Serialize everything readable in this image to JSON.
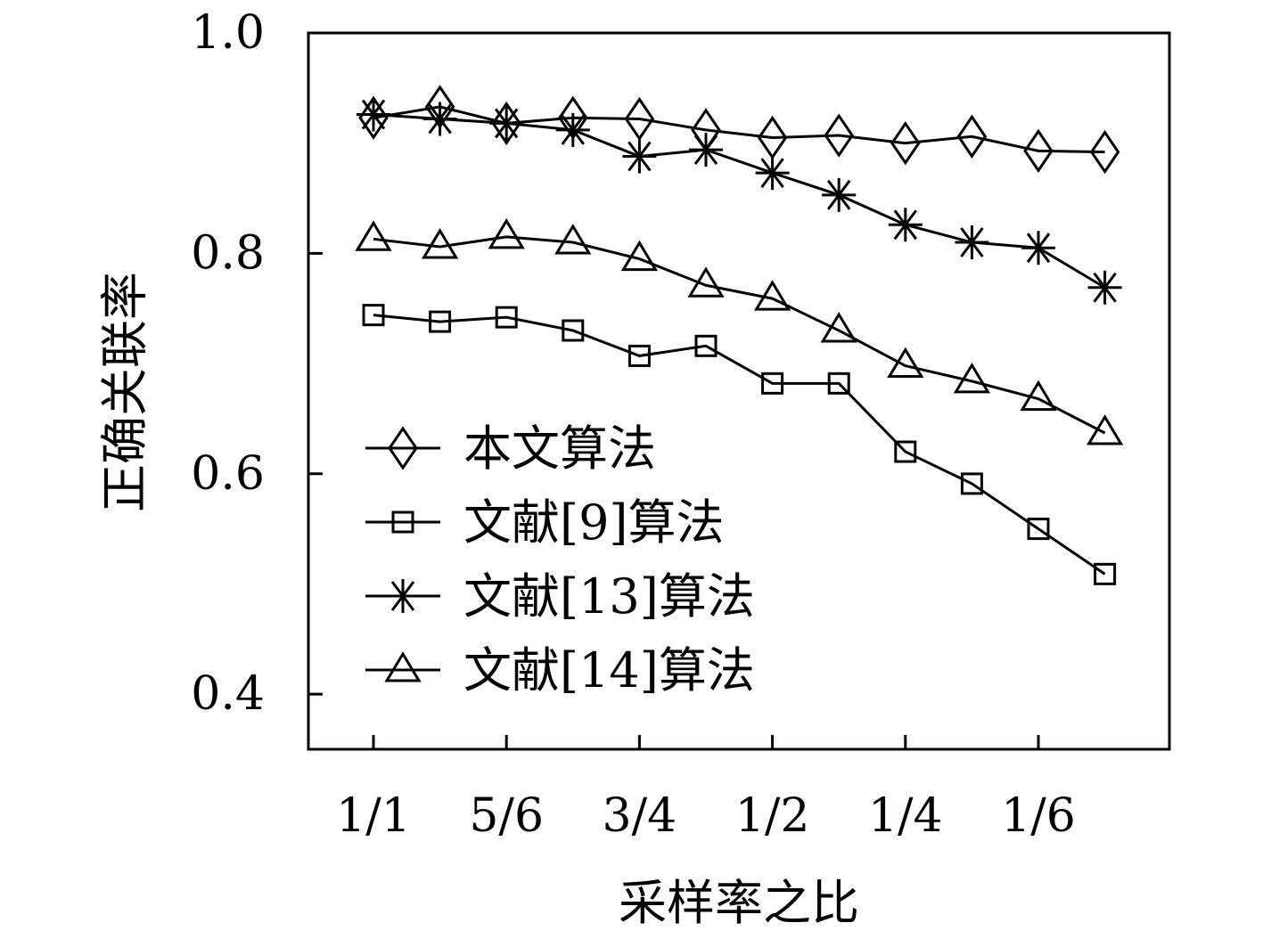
{
  "chart_data": {
    "type": "line",
    "xlabel": "采样率之比",
    "ylabel": "正确关联率",
    "ylim": [
      0.35,
      1.0
    ],
    "y_ticks": [
      {
        "value": 0.4,
        "label": "0.4"
      },
      {
        "value": 0.6,
        "label": "0.6"
      },
      {
        "value": 0.8,
        "label": "0.8"
      },
      {
        "value": 1.0,
        "label": "1.0"
      }
    ],
    "x_positions": [
      1,
      2,
      3,
      4,
      5,
      6,
      7,
      8,
      9,
      10,
      11,
      12
    ],
    "x_ticks": [
      {
        "position": 1,
        "label": "1/1"
      },
      {
        "position": 3,
        "label": "5/6"
      },
      {
        "position": 5,
        "label": "3/4"
      },
      {
        "position": 7,
        "label": "1/2"
      },
      {
        "position": 9,
        "label": "1/4"
      },
      {
        "position": 11,
        "label": "1/6"
      }
    ],
    "legend_position": "lower-left",
    "grid": false,
    "series": [
      {
        "name": "本文算法",
        "marker": "diamond",
        "values": [
          0.923,
          0.933,
          0.918,
          0.923,
          0.922,
          0.912,
          0.905,
          0.907,
          0.9,
          0.906,
          0.893,
          0.892
        ]
      },
      {
        "name": "文献[9]算法",
        "marker": "square",
        "values": [
          0.744,
          0.738,
          0.742,
          0.73,
          0.707,
          0.716,
          0.682,
          0.682,
          0.62,
          0.591,
          0.55,
          0.509
        ]
      },
      {
        "name": "文献[13]算法",
        "marker": "asterisk",
        "values": [
          0.926,
          0.922,
          0.918,
          0.912,
          0.888,
          0.894,
          0.873,
          0.853,
          0.826,
          0.81,
          0.805,
          0.769
        ]
      },
      {
        "name": "文献[14]算法",
        "marker": "triangle",
        "values": [
          0.813,
          0.806,
          0.815,
          0.81,
          0.795,
          0.771,
          0.759,
          0.73,
          0.698,
          0.684,
          0.668,
          0.637
        ]
      }
    ]
  }
}
